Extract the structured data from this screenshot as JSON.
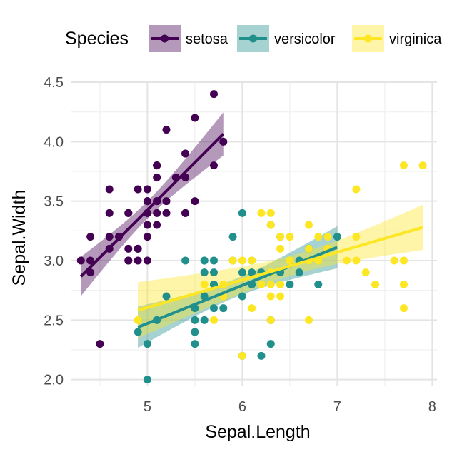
{
  "chart_data": {
    "type": "scatter",
    "xlabel": "Sepal.Length",
    "ylabel": "Sepal.Width",
    "xlim": [
      4.2,
      8.05
    ],
    "ylim": [
      1.95,
      4.5
    ],
    "x_ticks": [
      5,
      6,
      7,
      8
    ],
    "x_tick_labels": [
      "5",
      "6",
      "7",
      "8"
    ],
    "y_ticks": [
      2.0,
      2.5,
      3.0,
      3.5,
      4.0,
      4.5
    ],
    "y_tick_labels": [
      "2.0",
      "2.5",
      "3.0",
      "3.5",
      "4.0",
      "4.5"
    ],
    "grid": true,
    "legend": {
      "title": "Species",
      "position": "top"
    },
    "series": [
      {
        "name": "setosa",
        "color": "#440154",
        "points": [
          [
            5.1,
            3.5
          ],
          [
            4.9,
            3.0
          ],
          [
            4.7,
            3.2
          ],
          [
            4.6,
            3.1
          ],
          [
            5.0,
            3.6
          ],
          [
            5.4,
            3.9
          ],
          [
            4.6,
            3.4
          ],
          [
            5.0,
            3.4
          ],
          [
            4.4,
            2.9
          ],
          [
            4.9,
            3.1
          ],
          [
            5.4,
            3.7
          ],
          [
            4.8,
            3.4
          ],
          [
            4.8,
            3.0
          ],
          [
            4.3,
            3.0
          ],
          [
            5.8,
            4.0
          ],
          [
            5.7,
            4.4
          ],
          [
            5.4,
            3.9
          ],
          [
            5.1,
            3.5
          ],
          [
            5.7,
            3.8
          ],
          [
            5.1,
            3.8
          ],
          [
            5.4,
            3.4
          ],
          [
            5.1,
            3.7
          ],
          [
            4.6,
            3.6
          ],
          [
            5.1,
            3.3
          ],
          [
            4.8,
            3.4
          ],
          [
            5.0,
            3.0
          ],
          [
            5.0,
            3.4
          ],
          [
            5.2,
            3.5
          ],
          [
            5.2,
            3.4
          ],
          [
            4.7,
            3.2
          ],
          [
            4.8,
            3.1
          ],
          [
            5.4,
            3.4
          ],
          [
            5.2,
            4.1
          ],
          [
            5.5,
            4.2
          ],
          [
            4.9,
            3.1
          ],
          [
            5.0,
            3.2
          ],
          [
            5.5,
            3.5
          ],
          [
            4.9,
            3.6
          ],
          [
            4.4,
            3.0
          ],
          [
            5.1,
            3.4
          ],
          [
            5.0,
            3.5
          ],
          [
            4.5,
            2.3
          ],
          [
            4.4,
            3.2
          ],
          [
            5.0,
            3.5
          ],
          [
            5.1,
            3.8
          ],
          [
            4.8,
            3.0
          ],
          [
            5.1,
            3.8
          ],
          [
            4.6,
            3.2
          ],
          [
            5.3,
            3.7
          ],
          [
            5.0,
            3.3
          ]
        ],
        "fit": {
          "intercept": -0.569,
          "slope": 0.799,
          "x_range": [
            4.3,
            5.8
          ]
        }
      },
      {
        "name": "versicolor",
        "color": "#21908C",
        "points": [
          [
            7.0,
            3.2
          ],
          [
            6.4,
            3.2
          ],
          [
            6.9,
            3.1
          ],
          [
            5.5,
            2.3
          ],
          [
            6.5,
            2.8
          ],
          [
            5.7,
            2.8
          ],
          [
            6.3,
            3.3
          ],
          [
            4.9,
            2.4
          ],
          [
            6.6,
            2.9
          ],
          [
            5.2,
            2.7
          ],
          [
            5.0,
            2.0
          ],
          [
            5.9,
            3.0
          ],
          [
            6.0,
            2.2
          ],
          [
            6.1,
            2.9
          ],
          [
            5.6,
            2.9
          ],
          [
            6.7,
            3.1
          ],
          [
            5.6,
            3.0
          ],
          [
            5.8,
            2.7
          ],
          [
            6.2,
            2.2
          ],
          [
            5.6,
            2.5
          ],
          [
            5.9,
            3.2
          ],
          [
            6.1,
            2.8
          ],
          [
            6.3,
            2.5
          ],
          [
            6.1,
            2.8
          ],
          [
            6.4,
            2.9
          ],
          [
            6.6,
            3.0
          ],
          [
            6.8,
            2.8
          ],
          [
            6.7,
            3.0
          ],
          [
            6.0,
            2.9
          ],
          [
            5.7,
            2.6
          ],
          [
            5.5,
            2.4
          ],
          [
            5.5,
            2.4
          ],
          [
            5.8,
            2.7
          ],
          [
            6.0,
            2.7
          ],
          [
            5.4,
            3.0
          ],
          [
            6.0,
            3.4
          ],
          [
            6.7,
            3.1
          ],
          [
            6.3,
            2.3
          ],
          [
            5.6,
            3.0
          ],
          [
            5.5,
            2.5
          ],
          [
            5.5,
            2.6
          ],
          [
            6.1,
            3.0
          ],
          [
            5.8,
            2.6
          ],
          [
            5.0,
            2.3
          ],
          [
            5.6,
            2.7
          ],
          [
            5.7,
            3.0
          ],
          [
            5.7,
            2.9
          ],
          [
            6.2,
            2.9
          ],
          [
            5.1,
            2.5
          ],
          [
            5.7,
            2.8
          ]
        ],
        "fit": {
          "intercept": 0.872,
          "slope": 0.32,
          "x_range": [
            4.9,
            7.0
          ]
        }
      },
      {
        "name": "virginica",
        "color": "#FDE725",
        "points": [
          [
            6.3,
            3.3
          ],
          [
            5.8,
            2.7
          ],
          [
            7.1,
            3.0
          ],
          [
            6.3,
            2.9
          ],
          [
            6.5,
            3.0
          ],
          [
            7.6,
            3.0
          ],
          [
            4.9,
            2.5
          ],
          [
            7.3,
            2.9
          ],
          [
            6.7,
            2.5
          ],
          [
            7.2,
            3.6
          ],
          [
            6.5,
            3.2
          ],
          [
            6.4,
            2.7
          ],
          [
            6.8,
            3.0
          ],
          [
            5.7,
            2.5
          ],
          [
            5.8,
            2.8
          ],
          [
            6.4,
            3.2
          ],
          [
            6.5,
            3.0
          ],
          [
            7.7,
            3.8
          ],
          [
            7.7,
            2.6
          ],
          [
            6.0,
            2.2
          ],
          [
            6.9,
            3.2
          ],
          [
            5.6,
            2.8
          ],
          [
            7.7,
            2.8
          ],
          [
            6.3,
            2.7
          ],
          [
            6.7,
            3.3
          ],
          [
            7.2,
            3.2
          ],
          [
            6.2,
            2.8
          ],
          [
            6.1,
            3.0
          ],
          [
            6.4,
            2.8
          ],
          [
            7.2,
            3.0
          ],
          [
            7.4,
            2.8
          ],
          [
            7.9,
            3.8
          ],
          [
            6.4,
            2.8
          ],
          [
            6.3,
            2.8
          ],
          [
            6.1,
            2.6
          ],
          [
            7.7,
            3.0
          ],
          [
            6.3,
            3.4
          ],
          [
            6.4,
            3.1
          ],
          [
            6.0,
            3.0
          ],
          [
            6.9,
            3.1
          ],
          [
            6.7,
            3.1
          ],
          [
            6.9,
            3.1
          ],
          [
            5.8,
            2.7
          ],
          [
            6.8,
            3.2
          ],
          [
            6.7,
            3.3
          ],
          [
            6.7,
            3.0
          ],
          [
            6.3,
            2.5
          ],
          [
            6.5,
            3.0
          ],
          [
            6.2,
            3.4
          ],
          [
            5.9,
            3.0
          ]
        ],
        "fit": {
          "intercept": 1.446,
          "slope": 0.232,
          "x_range": [
            4.9,
            7.9
          ]
        }
      }
    ]
  }
}
